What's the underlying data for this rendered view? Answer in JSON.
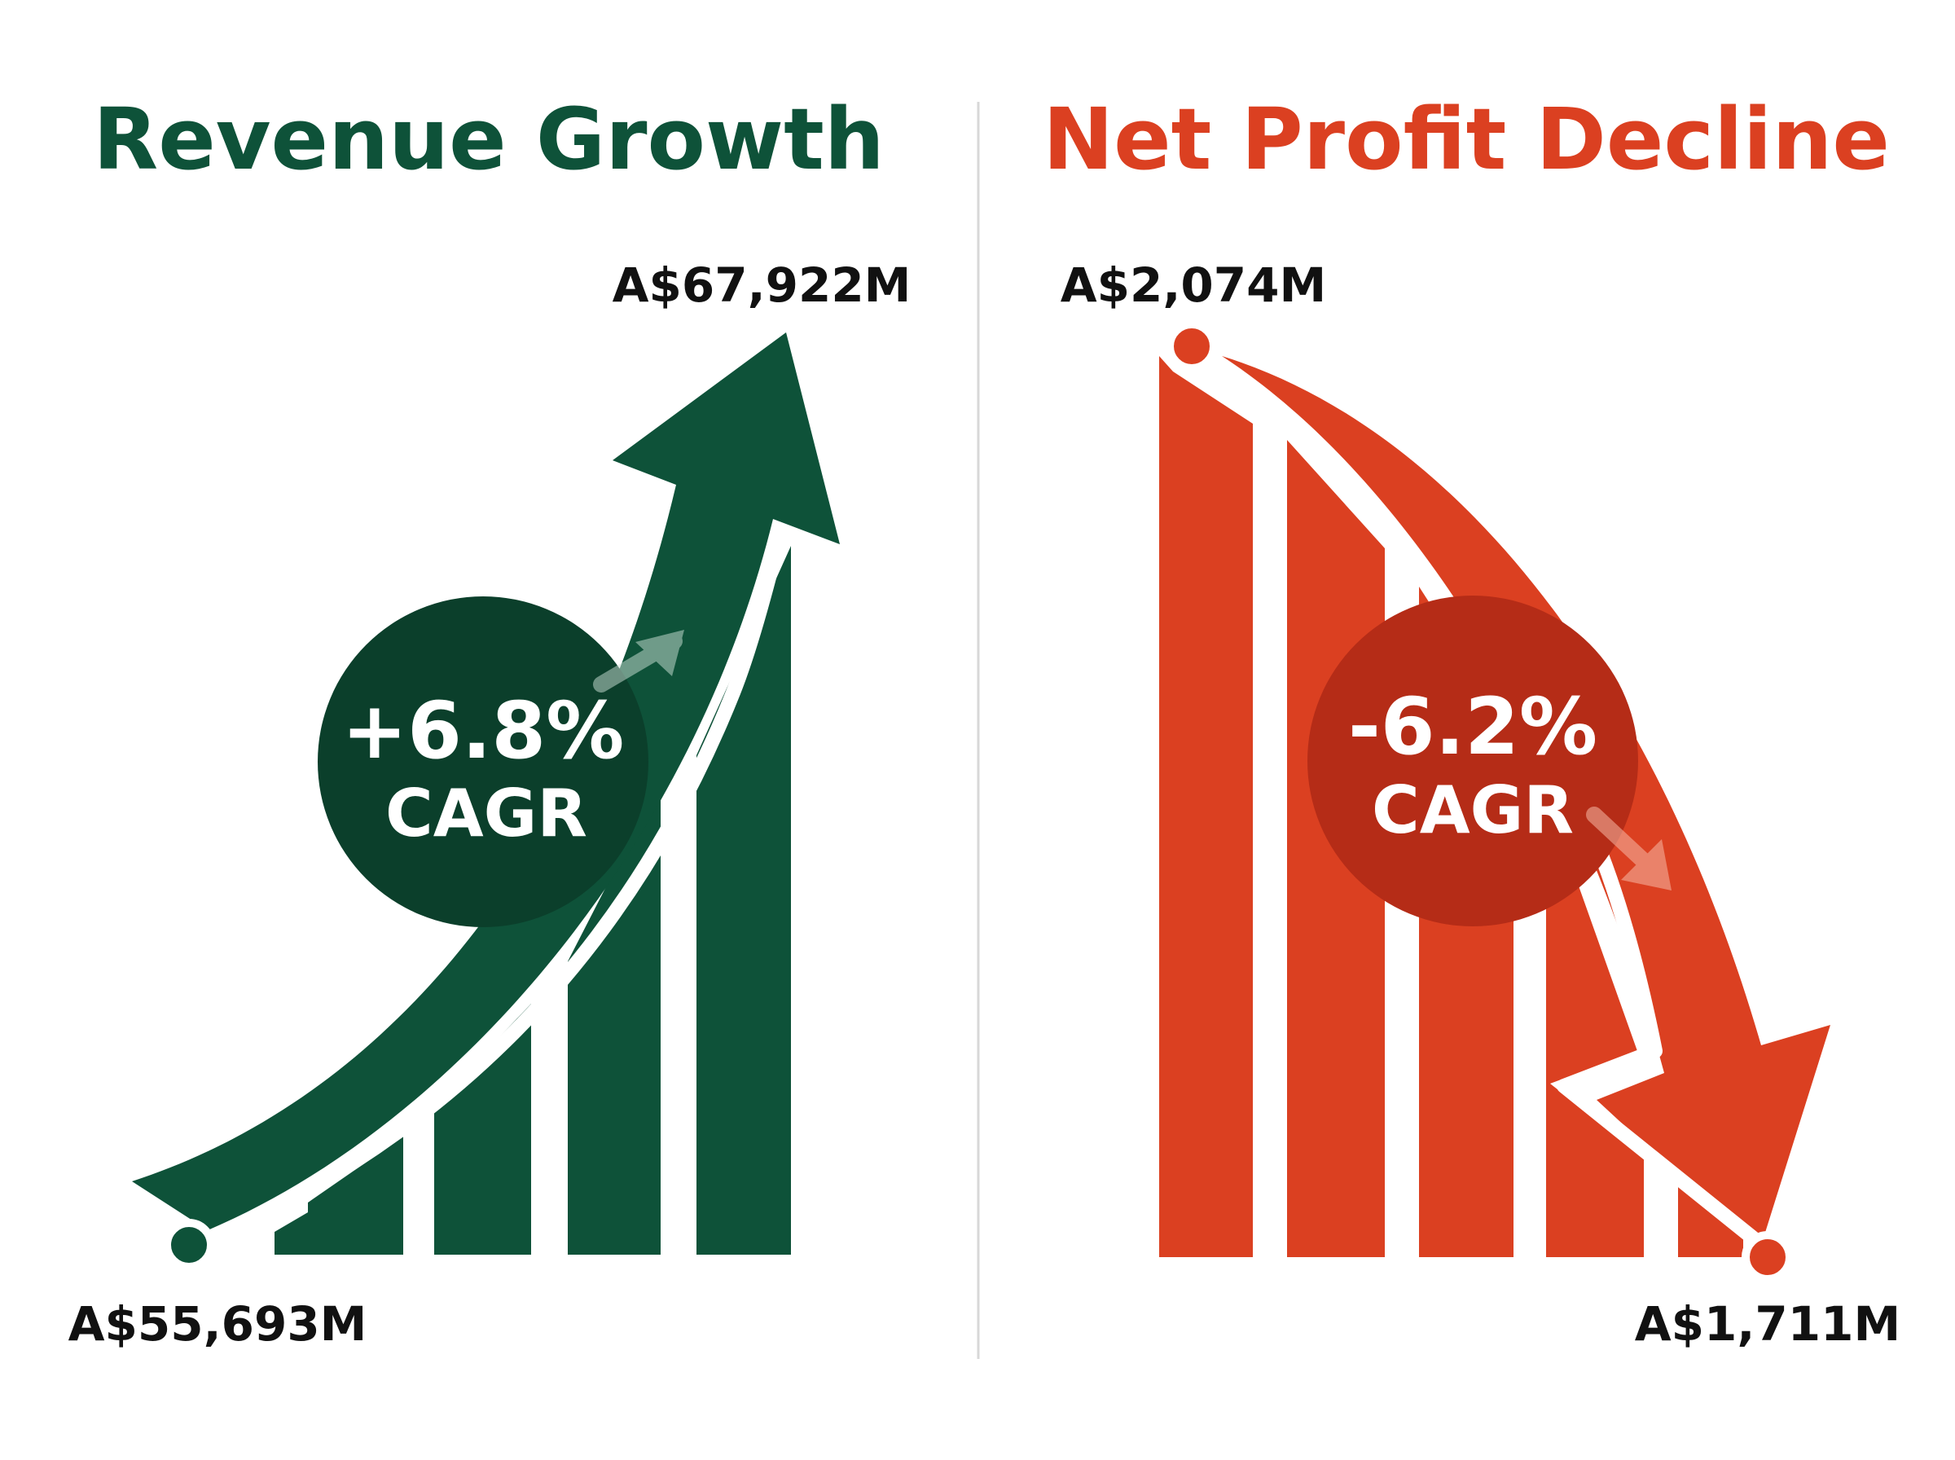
{
  "colors": {
    "green": "#0e5239",
    "green_dark": "#0b3f2b",
    "red": "#db4021",
    "red_dark": "#b52c17",
    "divider": "#d8d8d8"
  },
  "revenue": {
    "title": "Revenue Growth",
    "start_label": "A$55,693M",
    "end_label": "A$67,922M",
    "cagr_value": "+6.8%",
    "cagr_label": "CAGR"
  },
  "profit": {
    "title": "Net Profit Decline",
    "start_label": "A$2,074M",
    "end_label": "A$1,711M",
    "cagr_value": "-6.2%",
    "cagr_label": "CAGR"
  },
  "icons": [
    "up-trend-arrow-icon",
    "down-trend-arrow-icon"
  ]
}
